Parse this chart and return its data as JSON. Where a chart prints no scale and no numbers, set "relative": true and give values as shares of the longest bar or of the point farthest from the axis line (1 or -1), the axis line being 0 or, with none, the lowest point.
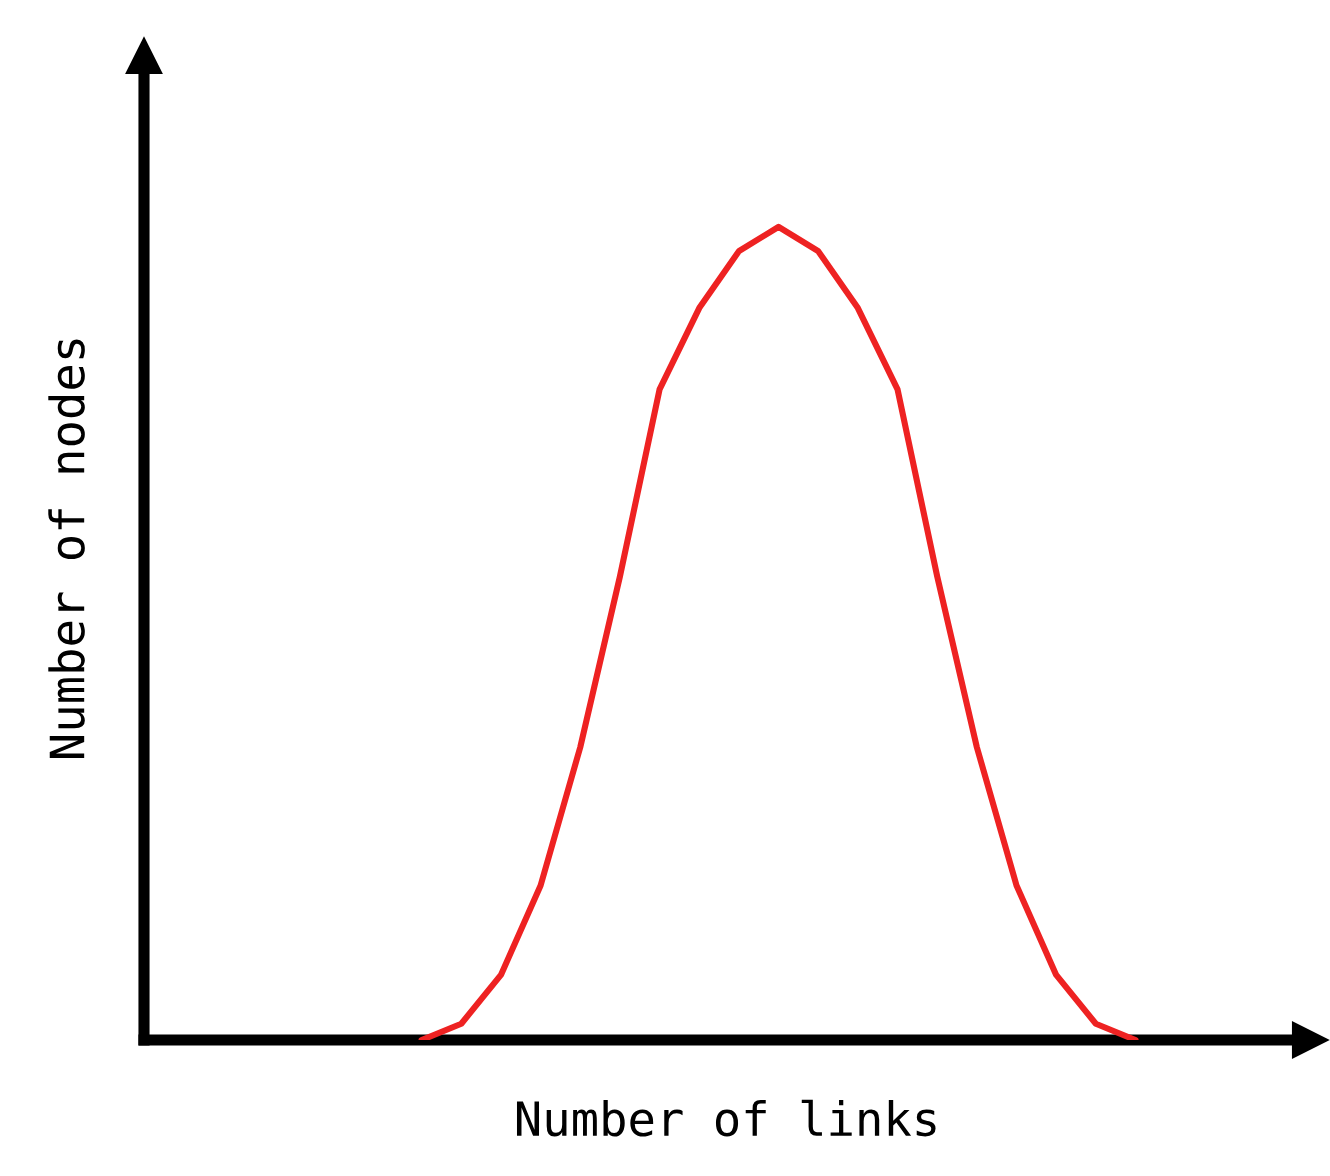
{
  "chart_data": {
    "type": "line",
    "relative": true,
    "xlabel": "Number of links",
    "ylabel": "Number of nodes",
    "categories": [
      null,
      null,
      null,
      null,
      null,
      null,
      null,
      null,
      null,
      null,
      null,
      null,
      null,
      null,
      null,
      null,
      null,
      null,
      null,
      null,
      null,
      null,
      null,
      null,
      null,
      null,
      null,
      null,
      null,
      null
    ],
    "series": [
      {
        "color": "#ee2222",
        "values": [
          null,
          null,
          null,
          null,
          null,
          null,
          null,
          0,
          0.02,
          0.08,
          0.19,
          0.36,
          0.57,
          0.8,
          0.9,
          0.97,
          1,
          0.97,
          0.9,
          0.8,
          0.57,
          0.36,
          0.19,
          0.08,
          0.02,
          0,
          null,
          null,
          null,
          null
        ]
      }
    ],
    "grid": false,
    "marker": "none",
    "line_style": "solid"
  }
}
